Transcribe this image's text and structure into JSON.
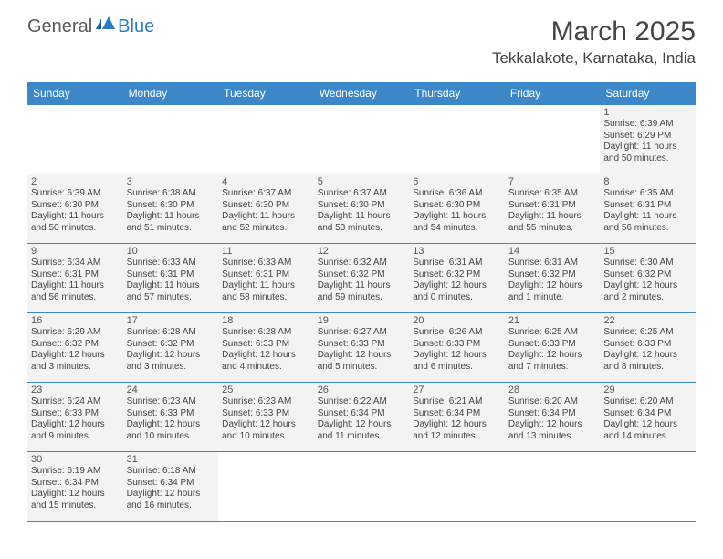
{
  "brand": {
    "general": "General",
    "blue": "Blue"
  },
  "title": {
    "month": "March 2025",
    "location": "Tekkalakote, Karnataka, India"
  },
  "colors": {
    "header_bar": "#3b87c8",
    "logo_blue": "#2b7bbf",
    "text_dark": "#444444",
    "cell_border": "#3b87c8",
    "shaded_bg": "#f3f3f3"
  },
  "dayHeaders": [
    "Sunday",
    "Monday",
    "Tuesday",
    "Wednesday",
    "Thursday",
    "Friday",
    "Saturday"
  ],
  "weeks": [
    [
      null,
      null,
      null,
      null,
      null,
      null,
      {
        "n": "1",
        "sr": "Sunrise: 6:39 AM",
        "ss": "Sunset: 6:29 PM",
        "dl": "Daylight: 11 hours and 50 minutes."
      }
    ],
    [
      {
        "n": "2",
        "sr": "Sunrise: 6:39 AM",
        "ss": "Sunset: 6:30 PM",
        "dl": "Daylight: 11 hours and 50 minutes."
      },
      {
        "n": "3",
        "sr": "Sunrise: 6:38 AM",
        "ss": "Sunset: 6:30 PM",
        "dl": "Daylight: 11 hours and 51 minutes."
      },
      {
        "n": "4",
        "sr": "Sunrise: 6:37 AM",
        "ss": "Sunset: 6:30 PM",
        "dl": "Daylight: 11 hours and 52 minutes."
      },
      {
        "n": "5",
        "sr": "Sunrise: 6:37 AM",
        "ss": "Sunset: 6:30 PM",
        "dl": "Daylight: 11 hours and 53 minutes."
      },
      {
        "n": "6",
        "sr": "Sunrise: 6:36 AM",
        "ss": "Sunset: 6:30 PM",
        "dl": "Daylight: 11 hours and 54 minutes."
      },
      {
        "n": "7",
        "sr": "Sunrise: 6:35 AM",
        "ss": "Sunset: 6:31 PM",
        "dl": "Daylight: 11 hours and 55 minutes."
      },
      {
        "n": "8",
        "sr": "Sunrise: 6:35 AM",
        "ss": "Sunset: 6:31 PM",
        "dl": "Daylight: 11 hours and 56 minutes."
      }
    ],
    [
      {
        "n": "9",
        "sr": "Sunrise: 6:34 AM",
        "ss": "Sunset: 6:31 PM",
        "dl": "Daylight: 11 hours and 56 minutes."
      },
      {
        "n": "10",
        "sr": "Sunrise: 6:33 AM",
        "ss": "Sunset: 6:31 PM",
        "dl": "Daylight: 11 hours and 57 minutes."
      },
      {
        "n": "11",
        "sr": "Sunrise: 6:33 AM",
        "ss": "Sunset: 6:31 PM",
        "dl": "Daylight: 11 hours and 58 minutes."
      },
      {
        "n": "12",
        "sr": "Sunrise: 6:32 AM",
        "ss": "Sunset: 6:32 PM",
        "dl": "Daylight: 11 hours and 59 minutes."
      },
      {
        "n": "13",
        "sr": "Sunrise: 6:31 AM",
        "ss": "Sunset: 6:32 PM",
        "dl": "Daylight: 12 hours and 0 minutes."
      },
      {
        "n": "14",
        "sr": "Sunrise: 6:31 AM",
        "ss": "Sunset: 6:32 PM",
        "dl": "Daylight: 12 hours and 1 minute."
      },
      {
        "n": "15",
        "sr": "Sunrise: 6:30 AM",
        "ss": "Sunset: 6:32 PM",
        "dl": "Daylight: 12 hours and 2 minutes."
      }
    ],
    [
      {
        "n": "16",
        "sr": "Sunrise: 6:29 AM",
        "ss": "Sunset: 6:32 PM",
        "dl": "Daylight: 12 hours and 3 minutes."
      },
      {
        "n": "17",
        "sr": "Sunrise: 6:28 AM",
        "ss": "Sunset: 6:32 PM",
        "dl": "Daylight: 12 hours and 3 minutes."
      },
      {
        "n": "18",
        "sr": "Sunrise: 6:28 AM",
        "ss": "Sunset: 6:33 PM",
        "dl": "Daylight: 12 hours and 4 minutes."
      },
      {
        "n": "19",
        "sr": "Sunrise: 6:27 AM",
        "ss": "Sunset: 6:33 PM",
        "dl": "Daylight: 12 hours and 5 minutes."
      },
      {
        "n": "20",
        "sr": "Sunrise: 6:26 AM",
        "ss": "Sunset: 6:33 PM",
        "dl": "Daylight: 12 hours and 6 minutes."
      },
      {
        "n": "21",
        "sr": "Sunrise: 6:25 AM",
        "ss": "Sunset: 6:33 PM",
        "dl": "Daylight: 12 hours and 7 minutes."
      },
      {
        "n": "22",
        "sr": "Sunrise: 6:25 AM",
        "ss": "Sunset: 6:33 PM",
        "dl": "Daylight: 12 hours and 8 minutes."
      }
    ],
    [
      {
        "n": "23",
        "sr": "Sunrise: 6:24 AM",
        "ss": "Sunset: 6:33 PM",
        "dl": "Daylight: 12 hours and 9 minutes."
      },
      {
        "n": "24",
        "sr": "Sunrise: 6:23 AM",
        "ss": "Sunset: 6:33 PM",
        "dl": "Daylight: 12 hours and 10 minutes."
      },
      {
        "n": "25",
        "sr": "Sunrise: 6:23 AM",
        "ss": "Sunset: 6:33 PM",
        "dl": "Daylight: 12 hours and 10 minutes."
      },
      {
        "n": "26",
        "sr": "Sunrise: 6:22 AM",
        "ss": "Sunset: 6:34 PM",
        "dl": "Daylight: 12 hours and 11 minutes."
      },
      {
        "n": "27",
        "sr": "Sunrise: 6:21 AM",
        "ss": "Sunset: 6:34 PM",
        "dl": "Daylight: 12 hours and 12 minutes."
      },
      {
        "n": "28",
        "sr": "Sunrise: 6:20 AM",
        "ss": "Sunset: 6:34 PM",
        "dl": "Daylight: 12 hours and 13 minutes."
      },
      {
        "n": "29",
        "sr": "Sunrise: 6:20 AM",
        "ss": "Sunset: 6:34 PM",
        "dl": "Daylight: 12 hours and 14 minutes."
      }
    ],
    [
      {
        "n": "30",
        "sr": "Sunrise: 6:19 AM",
        "ss": "Sunset: 6:34 PM",
        "dl": "Daylight: 12 hours and 15 minutes."
      },
      {
        "n": "31",
        "sr": "Sunrise: 6:18 AM",
        "ss": "Sunset: 6:34 PM",
        "dl": "Daylight: 12 hours and 16 minutes."
      },
      null,
      null,
      null,
      null,
      null
    ]
  ]
}
